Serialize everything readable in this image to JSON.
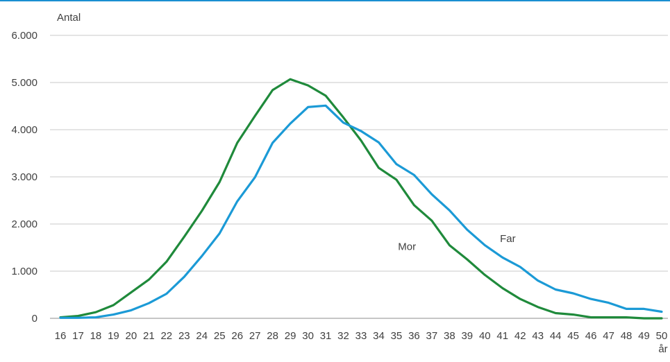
{
  "chart_data": {
    "type": "line",
    "title": "",
    "ylabel": "Antal",
    "xlabel": "år",
    "ylim": [
      0,
      6000
    ],
    "yticks": [
      0,
      1000,
      2000,
      3000,
      4000,
      5000,
      6000
    ],
    "ytick_labels": [
      "0",
      "1.000",
      "2.000",
      "3.000",
      "4.000",
      "5.000",
      "6.000"
    ],
    "x": [
      16,
      17,
      18,
      19,
      20,
      21,
      22,
      23,
      24,
      25,
      26,
      27,
      28,
      29,
      30,
      31,
      32,
      33,
      34,
      35,
      36,
      37,
      38,
      39,
      40,
      41,
      42,
      43,
      44,
      45,
      46,
      47,
      48,
      49,
      50
    ],
    "xtick_labels": [
      "16",
      "17",
      "18",
      "19",
      "20",
      "21",
      "22",
      "23",
      "24",
      "25",
      "26",
      "27",
      "28",
      "29",
      "30",
      "31",
      "32",
      "33",
      "34",
      "35",
      "36",
      "37",
      "38",
      "39",
      "40",
      "41",
      "42",
      "43",
      "44",
      "45",
      "46",
      "47",
      "48",
      "49",
      "50"
    ],
    "grid": true,
    "series": [
      {
        "name": "Mor",
        "color": "#1f8a3b",
        "values": [
          20,
          50,
          130,
          280,
          550,
          820,
          1200,
          1730,
          2280,
          2890,
          3720,
          4290,
          4840,
          5070,
          4940,
          4720,
          4260,
          3770,
          3190,
          2940,
          2400,
          2070,
          1550,
          1250,
          920,
          640,
          410,
          240,
          110,
          80,
          20,
          20,
          20,
          0,
          0
        ]
      },
      {
        "name": "Far",
        "color": "#1b9ad6",
        "values": [
          10,
          10,
          20,
          80,
          170,
          320,
          520,
          880,
          1320,
          1800,
          2480,
          2990,
          3720,
          4130,
          4480,
          4510,
          4150,
          3970,
          3730,
          3270,
          3040,
          2630,
          2290,
          1880,
          1550,
          1290,
          1090,
          800,
          610,
          530,
          410,
          330,
          200,
          200,
          140
        ]
      }
    ],
    "annotations": [
      {
        "text": "Mor",
        "series": "Mor",
        "x": 35.6,
        "y": 1450
      },
      {
        "text": "Far",
        "series": "Far",
        "x": 41.3,
        "y": 1620
      }
    ]
  }
}
